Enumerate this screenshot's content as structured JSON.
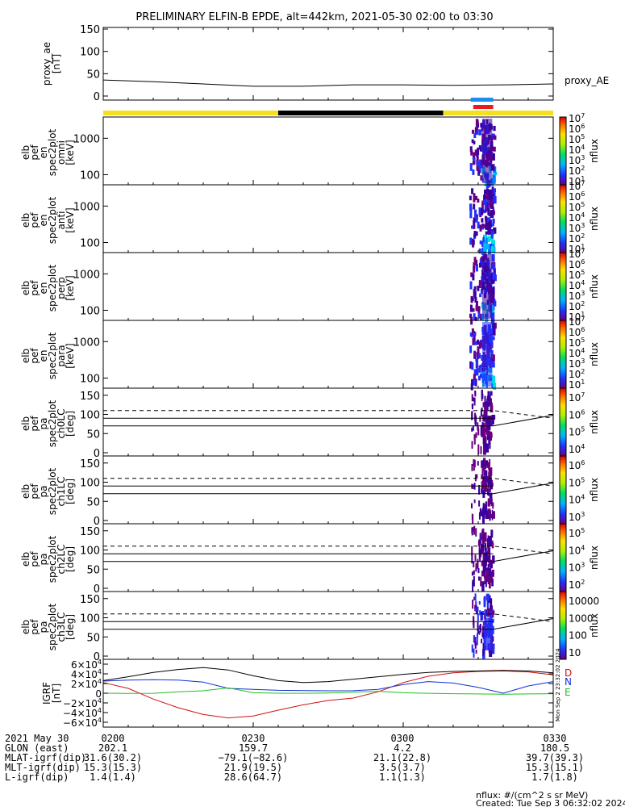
{
  "header": {
    "title": "PRELIMINARY ELFIN-B EPDE, alt=442km, 2021-05-30 02:00 to 03:30"
  },
  "colors": {
    "ae_line": "#000000",
    "bar_yellow": "#f5e020",
    "bar_black": "#000000",
    "bar_blue": "#1e8cf0",
    "bar_red": "#e81c1c",
    "igrf_d": "#d01010",
    "igrf_n": "#1030d0",
    "igrf_e": "#20c020",
    "igrf_total": "#000000"
  },
  "footer": {
    "nflux_units": "nflux: #/(cm^2 s sr MeV)",
    "created": "Created: Tue Sep  3 06:32:02 2024",
    "sidebar_text": "Mon Sep  2 23:32:02 2024"
  },
  "chart_data": [
    {
      "type": "line",
      "id": "proxy_ae",
      "ylabel_lines": [
        "proxy_ae",
        "[nT]"
      ],
      "legend": "proxy_AE",
      "ylim": [
        0,
        150
      ],
      "yticks": [
        "0",
        "50",
        "100",
        "150"
      ],
      "x": [
        0,
        10,
        20,
        30,
        40,
        50,
        60,
        70,
        80,
        90
      ],
      "values": [
        36,
        32,
        27,
        22,
        22,
        25,
        25,
        24,
        25,
        27
      ]
    },
    {
      "type": "bar",
      "id": "status_bar",
      "segments": [
        {
          "from": 0,
          "to": 35,
          "color": "yellow"
        },
        {
          "from": 35,
          "to": 68,
          "color": "black"
        },
        {
          "from": 68,
          "to": 90,
          "color": "yellow"
        }
      ],
      "markers": [
        {
          "from": 73.5,
          "to": 78,
          "color": "blue"
        },
        {
          "from": 74,
          "to": 78,
          "color": "red"
        }
      ]
    },
    {
      "type": "heatmap",
      "id": "en_omni",
      "ylabel_lines": [
        "elb",
        "pef",
        "en",
        "spec2plot",
        "omni",
        "[keV]"
      ],
      "yscale": "log",
      "yticks": [
        "100",
        "1000"
      ],
      "colorbar": {
        "label": "nflux",
        "ticks": [
          "10",
          "10",
          "10",
          "10",
          "10",
          "10",
          "10"
        ],
        "exponents": [
          "1",
          "2",
          "3",
          "4",
          "5",
          "6",
          "7"
        ]
      }
    },
    {
      "type": "heatmap",
      "id": "en_anti",
      "ylabel_lines": [
        "elb",
        "pef",
        "en",
        "spec2plot",
        "anti",
        "[keV]"
      ],
      "yscale": "log",
      "yticks": [
        "100",
        "1000"
      ],
      "colorbar": {
        "label": "nflux",
        "ticks": [
          "10",
          "10",
          "10",
          "10",
          "10",
          "10",
          "10"
        ],
        "exponents": [
          "1",
          "2",
          "3",
          "4",
          "5",
          "6",
          "7"
        ]
      }
    },
    {
      "type": "heatmap",
      "id": "en_perp",
      "ylabel_lines": [
        "elb",
        "pef",
        "en",
        "spec2plot",
        "perp",
        "[keV]"
      ],
      "yscale": "log",
      "yticks": [
        "100",
        "1000"
      ],
      "colorbar": {
        "label": "nflux",
        "ticks": [
          "10",
          "10",
          "10",
          "10",
          "10",
          "10",
          "10"
        ],
        "exponents": [
          "1",
          "2",
          "3",
          "4",
          "5",
          "6",
          "7"
        ]
      }
    },
    {
      "type": "heatmap",
      "id": "en_para",
      "ylabel_lines": [
        "elb",
        "pef",
        "en",
        "spec2plot",
        "para",
        "[keV]"
      ],
      "yscale": "log",
      "yticks": [
        "100",
        "1000"
      ],
      "colorbar": {
        "label": "nflux",
        "ticks": [
          "10",
          "10",
          "10",
          "10",
          "10",
          "10",
          "10"
        ],
        "exponents": [
          "1",
          "2",
          "3",
          "4",
          "5",
          "6",
          "7"
        ]
      }
    },
    {
      "type": "heatmap",
      "id": "pa_ch0",
      "ylabel_lines": [
        "elb",
        "pef",
        "pa",
        "spec2plot",
        "ch0LC",
        "[deg]"
      ],
      "ylim": [
        0,
        180
      ],
      "yticks": [
        "0",
        "50",
        "100",
        "150"
      ],
      "lc_dashed": 110,
      "lc_solid": 70,
      "colorbar": {
        "label": "nflux",
        "ticks": [
          "10",
          "10",
          "10",
          "10"
        ],
        "exponents": [
          "4",
          "5",
          "6",
          "7"
        ]
      }
    },
    {
      "type": "heatmap",
      "id": "pa_ch1",
      "ylabel_lines": [
        "elb",
        "pef",
        "pa",
        "spec2plot",
        "ch1LC",
        "[deg]"
      ],
      "ylim": [
        0,
        180
      ],
      "yticks": [
        "0",
        "50",
        "100",
        "150"
      ],
      "lc_dashed": 110,
      "lc_solid": 70,
      "colorbar": {
        "label": "nflux",
        "ticks": [
          "10",
          "10",
          "10",
          "10"
        ],
        "exponents": [
          "3",
          "4",
          "5",
          "6"
        ]
      }
    },
    {
      "type": "heatmap",
      "id": "pa_ch2",
      "ylabel_lines": [
        "elb",
        "pef",
        "pa",
        "spec2plot",
        "ch2LC",
        "[deg]"
      ],
      "ylim": [
        0,
        180
      ],
      "yticks": [
        "0",
        "50",
        "100",
        "150"
      ],
      "lc_dashed": 110,
      "lc_solid": 70,
      "colorbar": {
        "label": "nflux",
        "ticks": [
          "10",
          "10",
          "10",
          "10"
        ],
        "exponents": [
          "2",
          "3",
          "4",
          "5"
        ]
      }
    },
    {
      "type": "heatmap",
      "id": "pa_ch3",
      "ylabel_lines": [
        "elb",
        "pef",
        "pa",
        "spec2plot",
        "ch3LC",
        "[deg]"
      ],
      "ylim": [
        0,
        180
      ],
      "yticks": [
        "0",
        "50",
        "100",
        "150"
      ],
      "lc_dashed": 110,
      "lc_solid": 70,
      "colorbar": {
        "label": "nflux",
        "ticks": [
          "10",
          "100",
          "1000",
          "10000"
        ],
        "exponents": [
          "",
          "",
          "",
          ""
        ]
      }
    },
    {
      "type": "line",
      "id": "igrf",
      "ylabel_lines": [
        "IGRF",
        "[nT]"
      ],
      "ylim": [
        -60000,
        60000
      ],
      "yticks": [
        {
          "m": "−6×10",
          "e": "4"
        },
        {
          "m": "−4×10",
          "e": "4"
        },
        {
          "m": "−2×10",
          "e": "4"
        },
        {
          "m": "0",
          "e": ""
        },
        {
          "m": "2×10",
          "e": "4"
        },
        {
          "m": "4×10",
          "e": "4"
        },
        {
          "m": "6×10",
          "e": "4"
        }
      ],
      "x": [
        0,
        5,
        10,
        15,
        20,
        25,
        30,
        35,
        40,
        45,
        50,
        55,
        60,
        65,
        70,
        75,
        80,
        85,
        90
      ],
      "series": [
        {
          "name": "D",
          "values": [
            22000,
            10000,
            -12000,
            -30000,
            -44000,
            -51000,
            -47000,
            -35000,
            -24000,
            -15000,
            -10000,
            3000,
            22000,
            35000,
            42000,
            45000,
            46000,
            44000,
            38000
          ]
        },
        {
          "name": "N",
          "values": [
            25000,
            27000,
            28000,
            27000,
            23000,
            10000,
            8000,
            6000,
            5500,
            5000,
            5200,
            8000,
            18000,
            24000,
            21000,
            12000,
            0,
            15000,
            24000
          ]
        },
        {
          "name": "E",
          "values": [
            0,
            -500,
            -300,
            3000,
            5000,
            11000,
            1000,
            0,
            -200,
            500,
            2000,
            4000,
            1000,
            -200,
            -1000,
            -1500,
            -2000,
            -1500,
            -1000
          ]
        },
        {
          "name": "",
          "values": [
            26000,
            34000,
            43000,
            49000,
            53000,
            48000,
            36000,
            26000,
            22000,
            24000,
            29000,
            34000,
            39000,
            43000,
            45000,
            46000,
            47000,
            46000,
            42000
          ]
        }
      ]
    }
  ],
  "ephemeris": {
    "rows": [
      [
        "2021 May 30",
        "0200",
        "0230",
        "0300",
        "0330"
      ],
      [
        "GLON (east)",
        "202.1",
        "159.7",
        "4.2",
        "180.5"
      ],
      [
        "MLAT-igrf(dip)",
        "31.6(30.2)",
        "−79.1(−82.6)",
        "21.1(22.8)",
        "39.7(39.3)"
      ],
      [
        "MLT-igrf(dip)",
        "15.3(15.3)",
        "21.9(19.5)",
        "3.5(3.7)",
        "15.3(15.1)"
      ],
      [
        "L-igrf(dip)",
        "1.4(1.4)",
        "28.6(64.7)",
        "1.1(1.3)",
        "1.7(1.8)"
      ]
    ]
  }
}
